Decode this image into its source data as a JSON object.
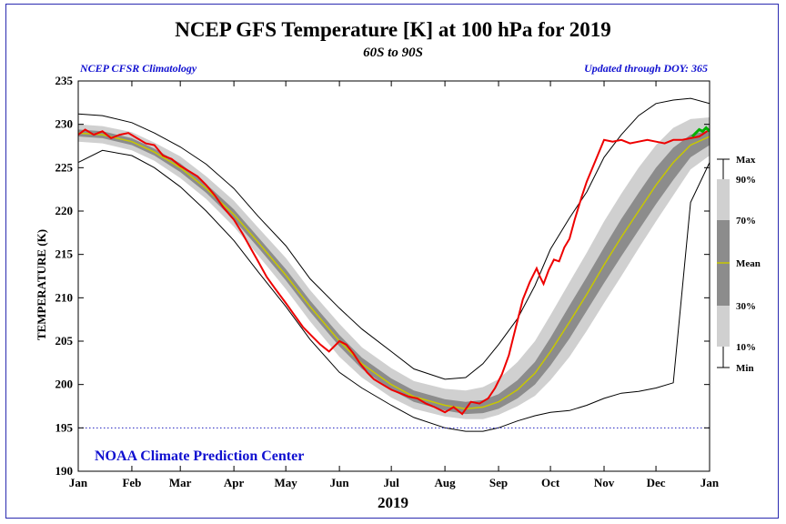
{
  "header": {
    "title": "NCEP GFS Temperature [K] at 100 hPa for 2019",
    "subtitle": "60S to 90S",
    "left_note": "NCEP CFSR Climatology",
    "right_note": "Updated through DOY: 365"
  },
  "chart_data": {
    "type": "area",
    "title": "NCEP GFS Temperature [K] at 100 hPa for 2019",
    "subtitle": "60S to 90S",
    "xlabel": "2019",
    "ylabel": "TEMPERATURE (K)",
    "xlim": [
      1,
      366
    ],
    "ylim": [
      190,
      235
    ],
    "x_ticks": [
      {
        "label": "Jan",
        "doy": 1
      },
      {
        "label": "Feb",
        "doy": 32
      },
      {
        "label": "Mar",
        "doy": 60
      },
      {
        "label": "Apr",
        "doy": 91
      },
      {
        "label": "May",
        "doy": 121
      },
      {
        "label": "Jun",
        "doy": 152
      },
      {
        "label": "Jul",
        "doy": 182
      },
      {
        "label": "Aug",
        "doy": 213
      },
      {
        "label": "Sep",
        "doy": 244
      },
      {
        "label": "Oct",
        "doy": 274
      },
      {
        "label": "Nov",
        "doy": 305
      },
      {
        "label": "Dec",
        "doy": 335
      },
      {
        "label": "Jan",
        "doy": 366
      }
    ],
    "y_ticks": [
      190,
      195,
      200,
      205,
      210,
      215,
      220,
      225,
      230,
      235
    ],
    "reference_line": {
      "value": 195,
      "style": "dotted",
      "color": "#2020c0"
    },
    "watermark": "NOAA Climate Prediction Center",
    "legend": {
      "position": "right",
      "items": [
        "Max",
        "90%",
        "70%",
        "Mean",
        "30%",
        "10%",
        "Min"
      ]
    },
    "colors": {
      "band_10_90": "#d0d0d0",
      "band_30_70": "#8c8c8c",
      "mean": "#c8c800",
      "minmax": "#000000",
      "current": "#ee0000",
      "recent": "#00b000"
    },
    "climatology": {
      "doy": [
        1,
        15,
        32,
        45,
        60,
        75,
        91,
        105,
        121,
        135,
        152,
        165,
        182,
        195,
        213,
        225,
        235,
        244,
        255,
        265,
        274,
        285,
        295,
        305,
        315,
        325,
        335,
        345,
        355,
        366
      ],
      "mean": [
        229.0,
        228.8,
        228.0,
        226.8,
        225.0,
        222.6,
        219.6,
        216.4,
        212.6,
        209.0,
        205.0,
        202.4,
        200.0,
        198.6,
        197.6,
        197.2,
        197.4,
        198.0,
        199.4,
        201.3,
        203.8,
        207.2,
        210.4,
        213.8,
        217.0,
        220.0,
        223.0,
        225.6,
        227.6,
        228.6
      ],
      "p30": [
        228.6,
        228.4,
        227.6,
        226.4,
        224.5,
        222.1,
        219.0,
        215.8,
        212.0,
        208.4,
        204.4,
        201.8,
        199.4,
        198.0,
        197.0,
        196.6,
        196.7,
        197.2,
        198.4,
        200.0,
        202.2,
        205.3,
        208.5,
        211.7,
        214.8,
        217.8,
        220.8,
        223.6,
        226.2,
        227.6
      ],
      "p70": [
        229.4,
        229.2,
        228.4,
        227.2,
        225.5,
        223.1,
        220.2,
        217.0,
        213.3,
        209.7,
        205.7,
        203.1,
        200.7,
        199.3,
        198.3,
        198.0,
        198.2,
        198.9,
        200.5,
        202.6,
        205.4,
        209.1,
        212.4,
        215.8,
        219.1,
        222.1,
        225.0,
        227.3,
        228.8,
        229.3
      ],
      "p10": [
        228.0,
        227.8,
        227.0,
        225.8,
        223.8,
        221.4,
        218.2,
        214.9,
        211.0,
        207.3,
        203.2,
        200.8,
        198.5,
        197.2,
        196.3,
        196.0,
        196.0,
        196.5,
        197.5,
        198.7,
        200.5,
        203.2,
        206.2,
        209.4,
        212.5,
        215.7,
        218.8,
        221.8,
        224.8,
        226.4
      ],
      "p90": [
        230.0,
        229.8,
        229.1,
        227.9,
        226.3,
        224.0,
        221.2,
        218.1,
        214.6,
        210.9,
        207.0,
        204.3,
        201.9,
        200.4,
        199.5,
        199.3,
        199.7,
        200.6,
        202.6,
        205.0,
        208.0,
        211.8,
        215.2,
        218.8,
        222.0,
        225.0,
        227.6,
        229.6,
        230.6,
        230.8
      ],
      "min": [
        225.6,
        227.0,
        226.4,
        225.0,
        222.8,
        220.0,
        216.6,
        213.0,
        209.0,
        205.2,
        201.4,
        199.6,
        197.6,
        196.2,
        195.0,
        194.6,
        194.6,
        195.0,
        195.8,
        196.4,
        196.8,
        197.0,
        197.6,
        198.4,
        199.0,
        199.2,
        199.6,
        200.2,
        221.0,
        225.6
      ],
      "max": [
        231.2,
        231.0,
        230.2,
        229.0,
        227.4,
        225.4,
        222.6,
        219.4,
        216.0,
        212.2,
        208.8,
        206.4,
        203.8,
        201.8,
        200.6,
        200.8,
        202.4,
        204.6,
        207.6,
        211.4,
        215.6,
        219.2,
        222.2,
        226.2,
        228.8,
        231.0,
        232.4,
        232.8,
        233.0,
        232.4
      ]
    },
    "series": [
      {
        "name": "2019",
        "color": "#ee0000",
        "doy": [
          1,
          5,
          10,
          15,
          20,
          25,
          30,
          35,
          40,
          45,
          50,
          55,
          60,
          65,
          70,
          75,
          80,
          85,
          91,
          96,
          101,
          105,
          110,
          115,
          121,
          126,
          131,
          136,
          141,
          146,
          152,
          156,
          160,
          164,
          168,
          172,
          177,
          182,
          187,
          192,
          197,
          202,
          207,
          213,
          218,
          223,
          228,
          233,
          238,
          242,
          246,
          250,
          254,
          258,
          262,
          266,
          268,
          270,
          273,
          276,
          279,
          282,
          285,
          288,
          292,
          295,
          300,
          305,
          310,
          315,
          320,
          325,
          330,
          335,
          340,
          345,
          350,
          355,
          360,
          366
        ],
        "values": [
          228.8,
          229.4,
          228.8,
          229.2,
          228.4,
          228.8,
          229.0,
          228.4,
          227.8,
          227.6,
          226.4,
          226.0,
          225.2,
          224.6,
          224.0,
          223.0,
          221.8,
          220.4,
          219.0,
          217.4,
          215.6,
          214.2,
          212.4,
          211.0,
          209.4,
          208.0,
          206.6,
          205.6,
          204.6,
          203.8,
          205.0,
          204.6,
          203.6,
          202.4,
          201.4,
          200.6,
          200.0,
          199.4,
          199.0,
          198.6,
          198.4,
          197.8,
          197.4,
          196.8,
          197.4,
          196.6,
          198.0,
          197.8,
          198.4,
          199.6,
          201.2,
          203.4,
          206.6,
          209.8,
          211.8,
          213.4,
          212.4,
          211.6,
          213.2,
          214.4,
          214.2,
          215.8,
          216.8,
          219.0,
          221.6,
          223.4,
          225.8,
          228.2,
          228.0,
          228.2,
          227.8,
          228.0,
          228.2,
          228.0,
          227.8,
          228.2,
          228.2,
          228.4,
          228.6,
          229.4
        ]
      },
      {
        "name": "recent",
        "color": "#00b000",
        "doy": [
          356,
          358,
          360,
          362,
          364,
          366
        ],
        "values": [
          228.6,
          229.0,
          229.4,
          229.2,
          229.6,
          229.2
        ]
      }
    ]
  }
}
